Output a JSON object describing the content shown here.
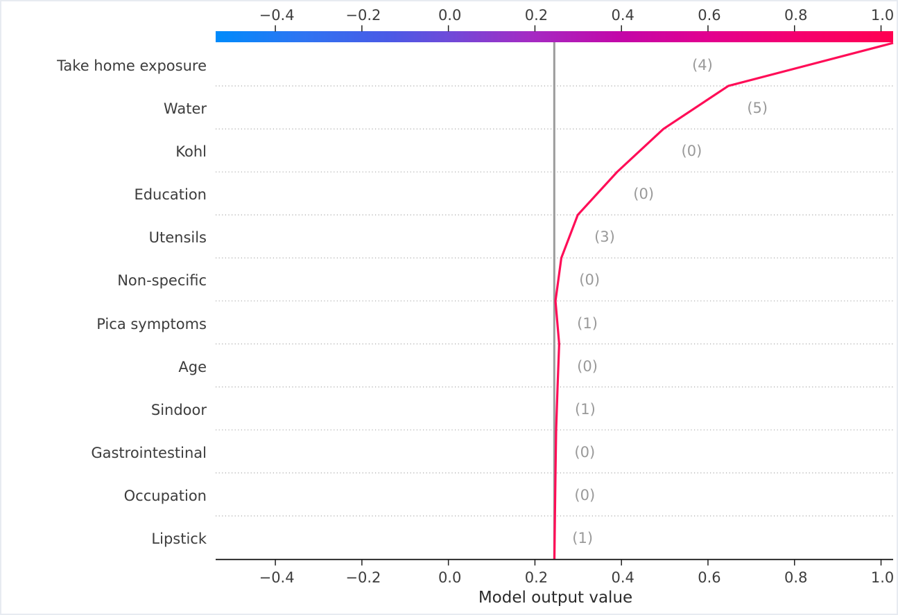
{
  "figure": {
    "background": "#ffffff",
    "border_color": "#e7ebf1"
  },
  "chart_data": {
    "type": "line",
    "variant": "shap-decision-plot",
    "xlabel": "Model output value",
    "xlim": [
      -0.538,
      1.028
    ],
    "x_ticks": [
      -0.4,
      -0.2,
      0.0,
      0.2,
      0.4,
      0.6,
      0.8,
      1.0
    ],
    "x_tick_labels": [
      "−0.4",
      "−0.2",
      "0.0",
      "0.2",
      "0.4",
      "0.6",
      "0.8",
      "1.0"
    ],
    "base_value": 0.2447,
    "final_output_value": 1.028,
    "grid": "dotted-horizontal",
    "legend": "none",
    "colorbar": {
      "position": "top",
      "stops": [
        {
          "pos": 0.0,
          "color": "#008bfb"
        },
        {
          "pos": 0.13,
          "color": "#2f74f2"
        },
        {
          "pos": 0.255,
          "color": "#4a5ae6"
        },
        {
          "pos": 0.343,
          "color": "#6e4bd9"
        },
        {
          "pos": 0.46,
          "color": "#a32cc4"
        },
        {
          "pos": 0.598,
          "color": "#c307a8"
        },
        {
          "pos": 0.726,
          "color": "#e2008f"
        },
        {
          "pos": 0.853,
          "color": "#f40070"
        },
        {
          "pos": 1.0,
          "color": "#ff0051"
        }
      ]
    },
    "features": [
      {
        "label": "Take home exposure",
        "value_label": "(4)",
        "cum_top": 1.028,
        "cum_bottom": 0.647,
        "ann_x": 0.584
      },
      {
        "label": "Water",
        "value_label": "(5)",
        "cum_top": 0.647,
        "cum_bottom": 0.497,
        "ann_x": 0.711
      },
      {
        "label": "Kohl",
        "value_label": "(0)",
        "cum_top": 0.497,
        "cum_bottom": 0.39,
        "ann_x": 0.559
      },
      {
        "label": "Education",
        "value_label": "(0)",
        "cum_top": 0.39,
        "cum_bottom": 0.299,
        "ann_x": 0.448
      },
      {
        "label": "Utensils",
        "value_label": "(3)",
        "cum_top": 0.299,
        "cum_bottom": 0.261,
        "ann_x": 0.358
      },
      {
        "label": "Non-specific",
        "value_label": "(0)",
        "cum_top": 0.261,
        "cum_bottom": 0.2475,
        "ann_x": 0.323
      },
      {
        "label": "Pica symptoms",
        "value_label": "(1)",
        "cum_top": 0.2475,
        "cum_bottom": 0.256,
        "ann_x": 0.318
      },
      {
        "label": "Age",
        "value_label": "(0)",
        "cum_top": 0.256,
        "cum_bottom": 0.2523,
        "ann_x": 0.318
      },
      {
        "label": "Sindoor",
        "value_label": "(1)",
        "cum_top": 0.2523,
        "cum_bottom": 0.249,
        "ann_x": 0.313
      },
      {
        "label": "Gastrointestinal",
        "value_label": "(0)",
        "cum_top": 0.249,
        "cum_bottom": 0.2475,
        "ann_x": 0.312
      },
      {
        "label": "Occupation",
        "value_label": "(0)",
        "cum_top": 0.2475,
        "cum_bottom": 0.2462,
        "ann_x": 0.312
      },
      {
        "label": "Lipstick",
        "value_label": "(1)",
        "cum_top": 0.2462,
        "cum_bottom": 0.245,
        "ann_x": 0.307
      }
    ],
    "colors": {
      "line": "#ff0d57",
      "base_line": "#9b9b9b",
      "annotation": "#999999",
      "gridline": "#b0b0b0",
      "axis": "#1f1f1f",
      "tick_text": "#3d3d3d",
      "feature_text": "#3c3c3c"
    }
  }
}
